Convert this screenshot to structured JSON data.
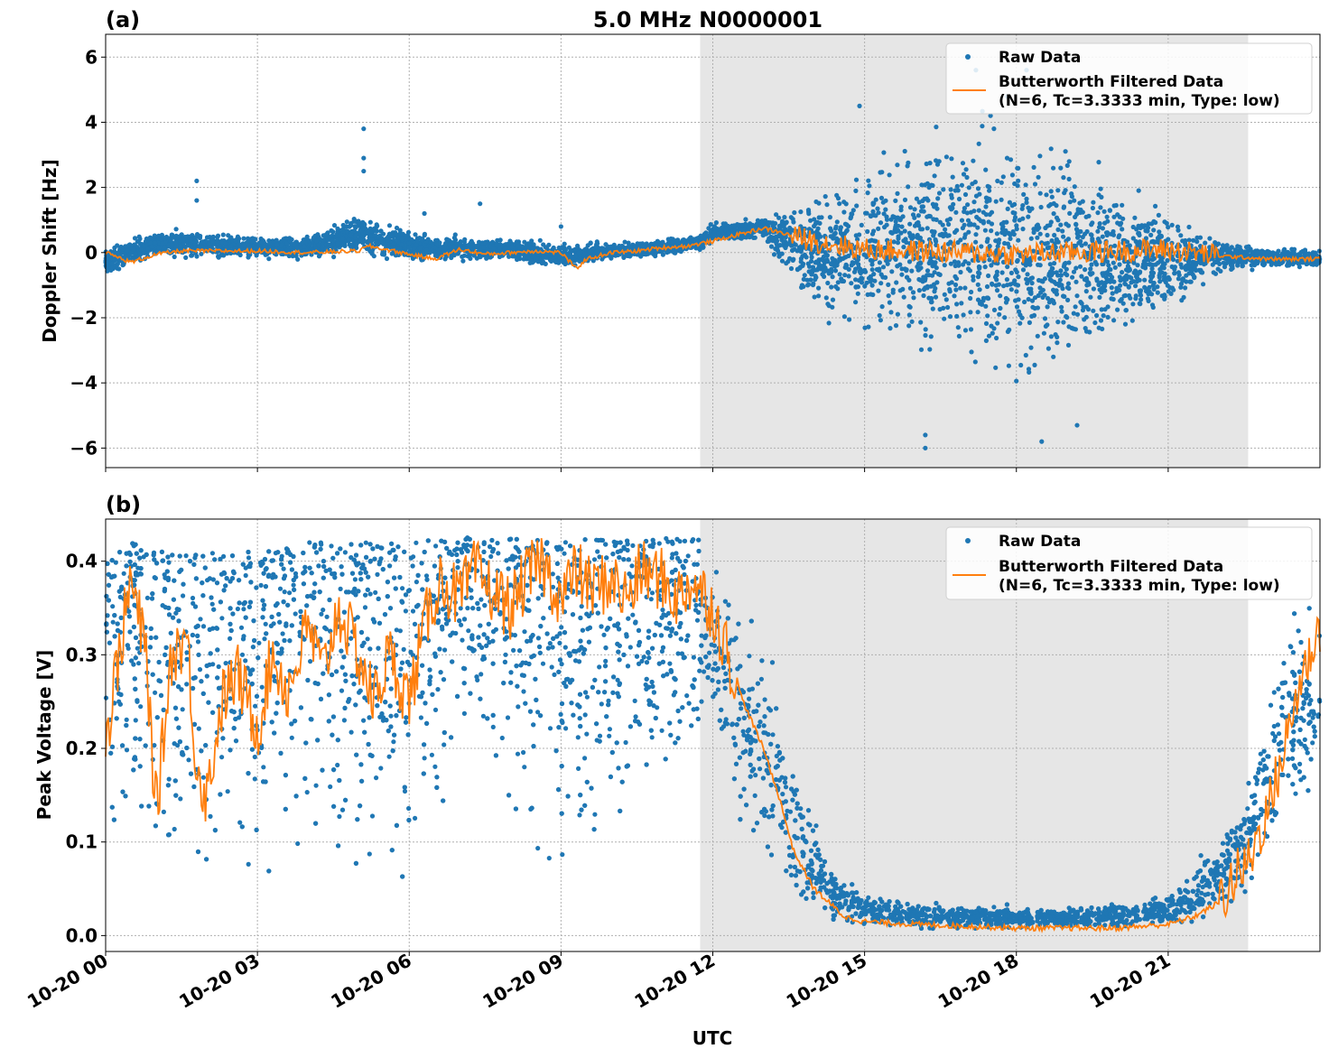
{
  "figure": {
    "title": "5.0 MHz N0000001",
    "xlabel": "UTC"
  },
  "colors": {
    "raw": "#1f77b4",
    "filtered": "#ff7f0e",
    "shade": "#e6e6e6",
    "grid": "#b0b0b0"
  },
  "legend": {
    "raw_label": "Raw Data",
    "filtered_line1": "Butterworth Filtered Data",
    "filtered_line2": "(N=6, Tc=3.3333 min, Type: low)",
    "placement": "top-right"
  },
  "x_tick_labels": [
    "10-20 00",
    "10-20 03",
    "10-20 06",
    "10-20 09",
    "10-20 12",
    "10-20 15",
    "10-20 18",
    "10-20 21"
  ],
  "chart_data": [
    {
      "panel": "(a)",
      "type": "scatter",
      "ylabel": "Doppler Shift [Hz]",
      "x_unit": "hours since 10-20 00 UTC",
      "xlim": [
        0,
        24
      ],
      "ylim": [
        -6.6,
        6.7
      ],
      "yticks": [
        -6,
        -4,
        -2,
        0,
        2,
        4,
        6
      ],
      "ytick_labels": [
        "−6",
        "−4",
        "−2",
        "0",
        "2",
        "4",
        "6"
      ],
      "grid": true,
      "legend": "top-right",
      "shaded_interval": [
        11.75,
        22.58
      ],
      "series": [
        {
          "name": "Butterworth Filtered Data",
          "style": "line",
          "x": [
            0,
            0.5,
            1,
            1.5,
            2,
            3,
            4,
            5,
            5.2,
            6,
            6.5,
            7,
            7.5,
            8,
            8.5,
            9,
            9.3,
            9.5,
            10,
            10.5,
            11,
            11.5,
            12,
            12.5,
            13,
            13.5,
            14,
            15,
            16,
            17,
            18,
            19,
            20,
            21,
            22,
            23,
            24
          ],
          "y": [
            0,
            -0.3,
            -0.05,
            0.05,
            0.05,
            0.05,
            0,
            0.05,
            0.2,
            -0.05,
            -0.2,
            0.1,
            -0.05,
            0,
            0.05,
            0,
            -0.5,
            -0.2,
            0,
            0.05,
            0.15,
            0.2,
            0.35,
            0.55,
            0.75,
            0.55,
            0.35,
            0.1,
            0.05,
            0,
            -0.05,
            0,
            0.05,
            0.1,
            -0.1,
            -0.2,
            -0.2
          ]
        },
        {
          "name": "Raw Data",
          "style": "scatter",
          "envelope_hours": [
            0,
            1,
            2,
            3,
            4,
            5,
            6,
            7,
            8,
            9,
            10,
            11,
            11.75,
            12,
            13,
            14,
            15,
            16,
            17,
            18,
            19,
            20,
            21,
            22,
            23,
            24
          ],
          "envelope_low": [
            -0.8,
            -0.3,
            -0.3,
            -0.3,
            -0.3,
            -0.3,
            -0.4,
            -0.4,
            -0.3,
            -0.6,
            -0.3,
            -0.2,
            0,
            0.2,
            0.3,
            -2.5,
            -3.5,
            -4,
            -4.7,
            -5.5,
            -4.8,
            -3.5,
            -2.5,
            -0.8,
            -0.6,
            -0.6
          ],
          "envelope_high": [
            0.3,
            0.8,
            0.8,
            0.6,
            0.6,
            1.4,
            0.8,
            0.6,
            0.5,
            0.4,
            0.4,
            0.5,
            0.6,
            1.0,
            1.2,
            2.5,
            3.5,
            4.5,
            5.0,
            5.5,
            4.5,
            3.0,
            2.0,
            0.6,
            0.3,
            0.2
          ],
          "outliers": [
            [
              1.8,
              2.2
            ],
            [
              1.8,
              1.6
            ],
            [
              5.1,
              3.8
            ],
            [
              5.1,
              2.9
            ],
            [
              5.1,
              2.5
            ],
            [
              6.3,
              1.2
            ],
            [
              7.4,
              1.5
            ],
            [
              9,
              0.8
            ],
            [
              16.2,
              -6.0
            ],
            [
              16.2,
              -5.6
            ],
            [
              17.2,
              5.6
            ],
            [
              18.5,
              -5.8
            ],
            [
              18.2,
              5.6
            ],
            [
              19.2,
              -5.3
            ],
            [
              14.9,
              4.5
            ]
          ]
        }
      ]
    },
    {
      "panel": "(b)",
      "type": "scatter",
      "ylabel": "Peak Voltage [V]",
      "x_unit": "hours since 10-20 00 UTC",
      "xlim": [
        0,
        24
      ],
      "ylim": [
        -0.017,
        0.445
      ],
      "yticks": [
        0.0,
        0.1,
        0.2,
        0.3,
        0.4
      ],
      "ytick_labels": [
        "0.0",
        "0.1",
        "0.2",
        "0.3",
        "0.4"
      ],
      "grid": true,
      "legend": "top-right",
      "shaded_interval": [
        11.75,
        22.58
      ],
      "series": [
        {
          "name": "Butterworth Filtered Data",
          "style": "line",
          "x": [
            0,
            0.2,
            0.5,
            0.8,
            1,
            1.3,
            1.6,
            1.8,
            2,
            2.3,
            2.6,
            3,
            3.3,
            3.6,
            4,
            4.3,
            4.6,
            5,
            5.3,
            5.6,
            6,
            6.3,
            6.6,
            7,
            7.3,
            7.6,
            8,
            8.3,
            8.6,
            9,
            9.3,
            9.6,
            10,
            10.3,
            10.6,
            11,
            11.3,
            11.6,
            12,
            12.3,
            12.6,
            13,
            13.3,
            13.6,
            14,
            14.3,
            14.6,
            15,
            16,
            17,
            18,
            19,
            20,
            21,
            21.5,
            22,
            22.3,
            22.6,
            23,
            23.3,
            23.6,
            24
          ],
          "y": [
            0.2,
            0.28,
            0.38,
            0.3,
            0.13,
            0.3,
            0.32,
            0.18,
            0.15,
            0.25,
            0.28,
            0.22,
            0.3,
            0.26,
            0.33,
            0.28,
            0.35,
            0.3,
            0.25,
            0.3,
            0.25,
            0.33,
            0.38,
            0.36,
            0.39,
            0.37,
            0.35,
            0.38,
            0.4,
            0.36,
            0.39,
            0.37,
            0.38,
            0.36,
            0.39,
            0.38,
            0.36,
            0.38,
            0.35,
            0.3,
            0.25,
            0.2,
            0.15,
            0.09,
            0.05,
            0.035,
            0.02,
            0.015,
            0.012,
            0.01,
            0.008,
            0.008,
            0.008,
            0.012,
            0.02,
            0.035,
            0.06,
            0.08,
            0.14,
            0.2,
            0.27,
            0.33
          ]
        },
        {
          "name": "Raw Data",
          "style": "scatter",
          "envelope_hours": [
            0,
            0.5,
            1,
            1.5,
            2,
            3,
            4,
            5,
            6,
            6.5,
            7,
            8,
            9,
            10,
            11,
            11.75,
            12,
            12.5,
            13,
            13.5,
            14,
            14.5,
            15,
            16,
            17,
            18,
            19,
            20,
            21,
            21.5,
            22,
            22.5,
            23,
            23.5,
            24
          ],
          "envelope_low": [
            0.06,
            0.1,
            0.04,
            0.06,
            0.05,
            0.05,
            0.05,
            0.05,
            0.04,
            0.05,
            0.25,
            0.1,
            0.05,
            0.08,
            0.15,
            0.2,
            0.17,
            0.08,
            0.02,
            0.01,
            0.007,
            0.005,
            0.004,
            0.003,
            0.003,
            0.003,
            0.003,
            0.003,
            0.004,
            0.006,
            0.008,
            0.015,
            0.05,
            0.09,
            0.09
          ],
          "envelope_high": [
            0.4,
            0.42,
            0.41,
            0.41,
            0.41,
            0.41,
            0.42,
            0.42,
            0.42,
            0.425,
            0.425,
            0.425,
            0.425,
            0.425,
            0.425,
            0.425,
            0.42,
            0.41,
            0.38,
            0.25,
            0.15,
            0.08,
            0.05,
            0.04,
            0.035,
            0.035,
            0.035,
            0.04,
            0.05,
            0.08,
            0.12,
            0.18,
            0.3,
            0.4,
            0.41
          ]
        }
      ]
    }
  ]
}
